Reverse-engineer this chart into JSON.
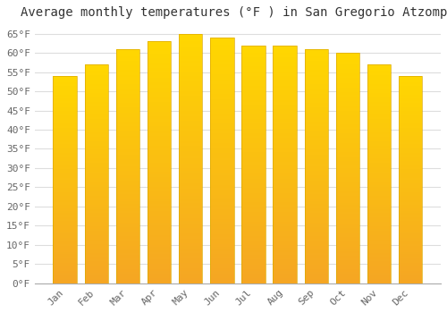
{
  "title": "Average monthly temperatures (°F ) in San Gregorio Atzompa",
  "months": [
    "Jan",
    "Feb",
    "Mar",
    "Apr",
    "May",
    "Jun",
    "Jul",
    "Aug",
    "Sep",
    "Oct",
    "Nov",
    "Dec"
  ],
  "values": [
    54,
    57,
    61,
    63,
    65,
    64,
    62,
    62,
    61,
    60,
    57,
    54
  ],
  "bar_color_top": "#FFD700",
  "bar_color_bottom": "#F5A623",
  "bar_edge_color": "#DDAA00",
  "background_color": "#FFFFFF",
  "grid_color": "#DDDDDD",
  "yticks": [
    0,
    5,
    10,
    15,
    20,
    25,
    30,
    35,
    40,
    45,
    50,
    55,
    60,
    65
  ],
  "ylim": [
    0,
    67
  ],
  "title_fontsize": 10,
  "tick_fontsize": 8,
  "title_color": "#333333",
  "tick_color": "#666666",
  "font_family": "monospace",
  "bar_width": 0.75
}
